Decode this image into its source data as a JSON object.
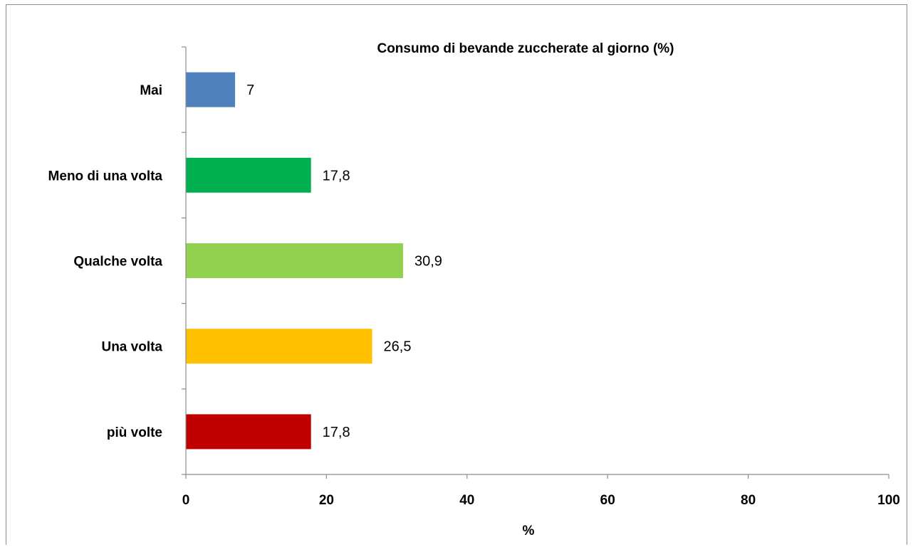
{
  "chart_data": {
    "type": "bar",
    "orientation": "horizontal",
    "title": "Consumo di bevande zuccherate al giorno (%)",
    "xlabel": "%",
    "ylabel": "",
    "xlim": [
      0,
      100
    ],
    "x_ticks": [
      "0",
      "20",
      "40",
      "60",
      "80",
      "100"
    ],
    "grid": false,
    "categories": [
      "Mai",
      "Meno di una volta",
      "Qualche volta",
      "Una volta",
      "più volte"
    ],
    "values": [
      7,
      17.8,
      30.9,
      26.5,
      17.8
    ],
    "data_labels": [
      "7",
      "17,8",
      "30,9",
      "26,5",
      "17,8"
    ],
    "colors": [
      "#4f81bd",
      "#00b050",
      "#92d050",
      "#ffc000",
      "#c00000"
    ]
  }
}
